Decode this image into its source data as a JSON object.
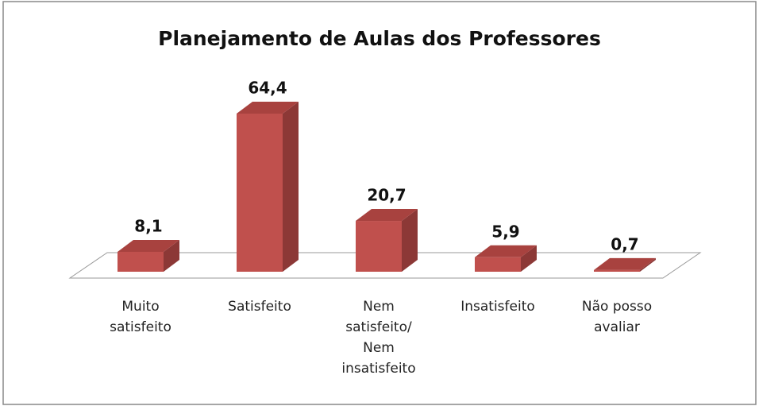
{
  "chart_data": {
    "type": "bar3d",
    "title": "Planejamento de Aulas dos Professores",
    "categories": [
      "Muito satisfeito",
      "Satisfeito",
      "Nem satisfeito/ Nem insatisfeito",
      "Insatisfeito",
      "Não posso avaliar"
    ],
    "values": [
      8.1,
      64.4,
      20.7,
      5.9,
      0.7
    ],
    "value_labels": [
      "8,1",
      "64,4",
      "20,7",
      "5,9",
      "0,7"
    ],
    "color": "#c0504d"
  }
}
